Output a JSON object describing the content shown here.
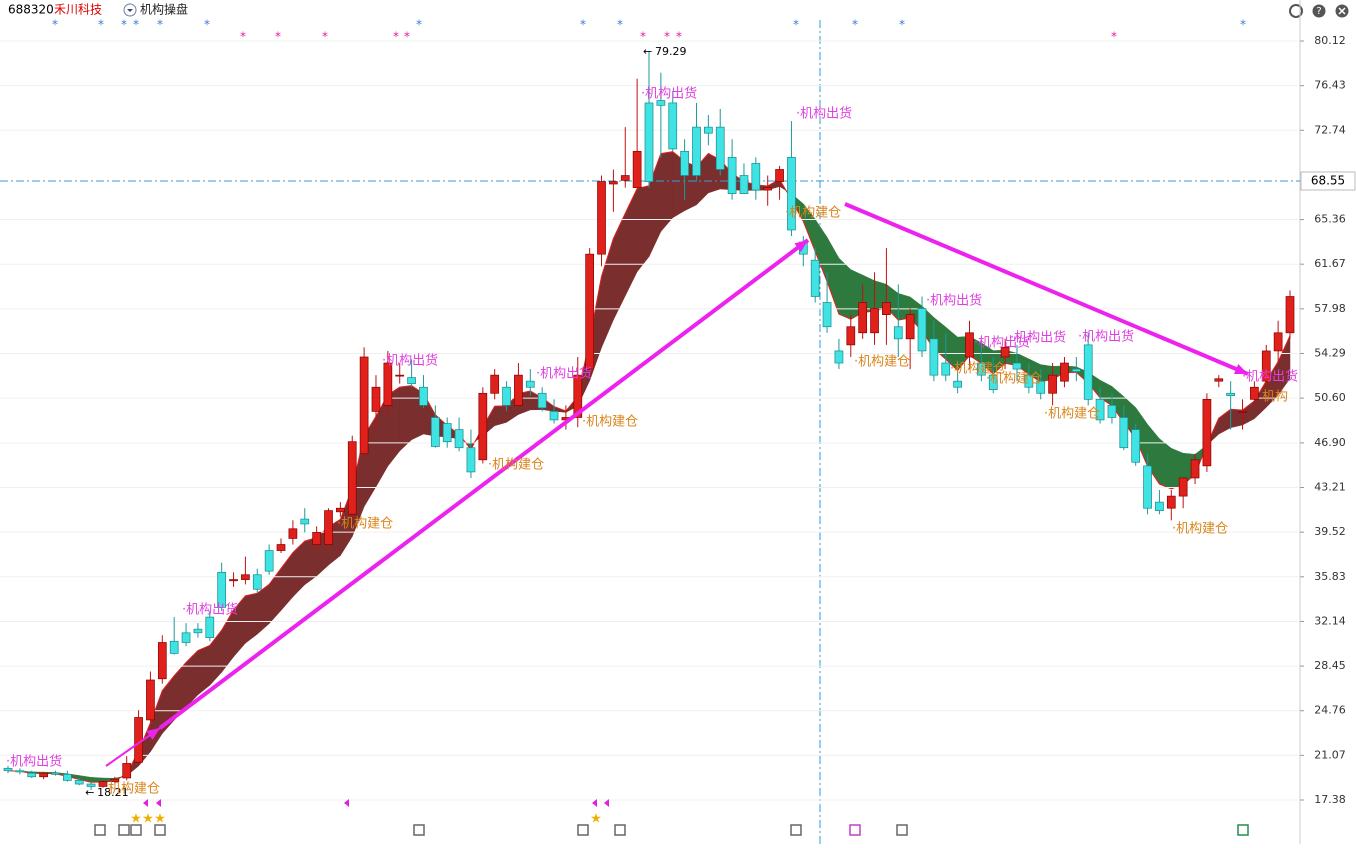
{
  "header": {
    "code": "688320",
    "name": "禾川科技",
    "indicator": "机构操盘"
  },
  "chart_data": {
    "type": "candlestick",
    "ylim": [
      17.38,
      80.12
    ],
    "yticks": [
      80.12,
      76.43,
      72.74,
      65.36,
      61.67,
      57.98,
      54.29,
      {
        "value": 50.6,
        "label": "50.60"
      },
      {
        "value": 46.9,
        "label": "46.90"
      },
      43.21,
      39.52,
      35.83,
      32.14,
      28.45,
      24.76,
      21.07,
      17.38
    ],
    "price_line": 68.55,
    "grid": true,
    "up_color": "#e0201a",
    "down_color": "#3fe3e3",
    "candles": [
      [
        20,
        20.2,
        19.6,
        19.8
      ],
      [
        19.8,
        20,
        19.5,
        19.7
      ],
      [
        19.6,
        19.8,
        19.2,
        19.3
      ],
      [
        19.3,
        19.7,
        19.1,
        19.6
      ],
      [
        19.6,
        19.8,
        19.4,
        19.5
      ],
      [
        19.5,
        19.8,
        18.9,
        19
      ],
      [
        19,
        19.2,
        18.6,
        18.7
      ],
      [
        18.7,
        18.9,
        18.21,
        18.5
      ],
      [
        18.5,
        19,
        18.4,
        18.9
      ],
      [
        18.9,
        19.3,
        18.7,
        19.1
      ],
      [
        19.2,
        21,
        19,
        20.4
      ],
      [
        20.5,
        24.8,
        20.3,
        24.2
      ],
      [
        24,
        28,
        23.8,
        27.3
      ],
      [
        27.4,
        31,
        27,
        30.4
      ],
      [
        30.5,
        32.5,
        29.4,
        29.5
      ],
      [
        31.2,
        32,
        30.1,
        30.4
      ],
      [
        31.5,
        32,
        30.8,
        31.2
      ],
      [
        32.5,
        33,
        30.5,
        30.8
      ],
      [
        36.2,
        37,
        33,
        33.3
      ],
      [
        35.5,
        36.2,
        35,
        35.6
      ],
      [
        35.6,
        37.5,
        35.2,
        36
      ],
      [
        36,
        36.5,
        34.5,
        34.8
      ],
      [
        38,
        38.5,
        36,
        36.3
      ],
      [
        38,
        39,
        37.8,
        38.5
      ],
      [
        39,
        40.5,
        38.5,
        39.8
      ],
      [
        40.6,
        41.5,
        39.5,
        40.2
      ],
      [
        38.5,
        40,
        38,
        39.5
      ],
      [
        38.5,
        41.5,
        38,
        41.3
      ],
      [
        41.2,
        42,
        40.8,
        41.5
      ],
      [
        41,
        47.5,
        40.5,
        47
      ],
      [
        46,
        54.8,
        45.8,
        54
      ],
      [
        49.5,
        52.5,
        48,
        51.5
      ],
      [
        50,
        54.5,
        49,
        53.5
      ],
      [
        52.5,
        53.5,
        51.8,
        52.5
      ],
      [
        52.3,
        53.8,
        51.5,
        51.8
      ],
      [
        51.5,
        52.5,
        49.8,
        50
      ],
      [
        49,
        50,
        46.5,
        46.6
      ],
      [
        48.5,
        49,
        46.5,
        47
      ],
      [
        48,
        49,
        46.2,
        46.5
      ],
      [
        46.5,
        48,
        44,
        44.5
      ],
      [
        45.5,
        51.5,
        45.2,
        51
      ],
      [
        51,
        53,
        50.5,
        52.5
      ],
      [
        51.5,
        52,
        49.5,
        50
      ],
      [
        50,
        53.5,
        49.8,
        52.5
      ],
      [
        52,
        53,
        50.8,
        51.5
      ],
      [
        51,
        51.5,
        49.5,
        49.8
      ],
      [
        49.5,
        50.5,
        48.5,
        48.8
      ],
      [
        48.8,
        50,
        48,
        49
      ],
      [
        49,
        54,
        48.2,
        52.5
      ],
      [
        53,
        63,
        52.5,
        62.5
      ],
      [
        62.5,
        69,
        61.5,
        68.5
      ],
      [
        68.3,
        69.5,
        66,
        68.5
      ],
      [
        68.6,
        73,
        68,
        69
      ],
      [
        68,
        77,
        68,
        71
      ],
      [
        75,
        79.29,
        68,
        68.5
      ],
      [
        75.2,
        77.5,
        70.5,
        74.8
      ],
      [
        75,
        76,
        71,
        71.2
      ],
      [
        71,
        72,
        67,
        69
      ],
      [
        73,
        75,
        68.5,
        69
      ],
      [
        73,
        74,
        71.5,
        72.5
      ],
      [
        73,
        74.5,
        69,
        69.5
      ],
      [
        70.5,
        72,
        67,
        67.5
      ],
      [
        69,
        70,
        67.5,
        67.5
      ],
      [
        70,
        70.5,
        67,
        67.8
      ],
      [
        67.8,
        69,
        66.5,
        68
      ],
      [
        68.5,
        69.8,
        67,
        69.5
      ],
      [
        70.5,
        73.5,
        64,
        64.5
      ],
      [
        63.5,
        64,
        61.5,
        62.5
      ],
      [
        62,
        63,
        58.5,
        59
      ],
      [
        58.5,
        61,
        56,
        56.5
      ],
      [
        54.5,
        55.5,
        53,
        53.5
      ],
      [
        55,
        57.5,
        54,
        56.5
      ],
      [
        56,
        60,
        55.5,
        58.5
      ],
      [
        56,
        61,
        55,
        58
      ],
      [
        57.5,
        63,
        55,
        58.5
      ],
      [
        56.5,
        60,
        54,
        55.5
      ],
      [
        55.5,
        58,
        53,
        57.5
      ],
      [
        58,
        59,
        54,
        54.5
      ],
      [
        55.5,
        57,
        52,
        52.5
      ],
      [
        53.5,
        56,
        52,
        52.5
      ],
      [
        52,
        53.5,
        51,
        51.5
      ],
      [
        54,
        57,
        53,
        56
      ],
      [
        53.5,
        55,
        52,
        52.5
      ],
      [
        52.5,
        54,
        51,
        51.3
      ],
      [
        54,
        55.5,
        53,
        54.8
      ],
      [
        53.5,
        55,
        52,
        53
      ],
      [
        52.5,
        53.5,
        51,
        51.5
      ],
      [
        52,
        53,
        50.5,
        51
      ],
      [
        51,
        53.5,
        50,
        52.5
      ],
      [
        52,
        54,
        51.5,
        53.5
      ],
      [
        53,
        54,
        52,
        52.8
      ],
      [
        55,
        56,
        50,
        50.5
      ],
      [
        50.5,
        51.5,
        48.5,
        48.8
      ],
      [
        50,
        51,
        48.5,
        49
      ],
      [
        49,
        50,
        46.3,
        46.5
      ],
      [
        48,
        48.5,
        45,
        45.3
      ],
      [
        45,
        46,
        41,
        41.5
      ],
      [
        42,
        43,
        41,
        41.3
      ],
      [
        41.5,
        43,
        40.5,
        42.5
      ],
      [
        42.5,
        44,
        41.5,
        44
      ],
      [
        44,
        46,
        43.5,
        45.5
      ],
      [
        45,
        51,
        44.5,
        50.5
      ],
      [
        52,
        52.5,
        51.5,
        52.2
      ],
      [
        51,
        52,
        48,
        50.8
      ],
      [
        49.5,
        50.5,
        48,
        49.5
      ],
      [
        50.5,
        52,
        50,
        51.5
      ],
      [
        52,
        55,
        51.5,
        54.5
      ],
      [
        54.5,
        57,
        53.5,
        56
      ],
      [
        56,
        59.5,
        55.5,
        59
      ]
    ],
    "annotations": [
      "·机构出货",
      "机构建仓",
      "·机构出货",
      "·机构建仓",
      "·机构出货",
      "·机构建仓",
      "·机构出货",
      "·机构建仓",
      "·机构出货",
      "·机构出货",
      "·机构建仓",
      "·机构建仓",
      "·机构出货",
      "·机构出货",
      "·机构建仓",
      "·机构出货",
      "·机构建仓",
      "·机构出货",
      "·机构建仓",
      "·机构建仓",
      "·机构出货",
      "机构"
    ]
  }
}
